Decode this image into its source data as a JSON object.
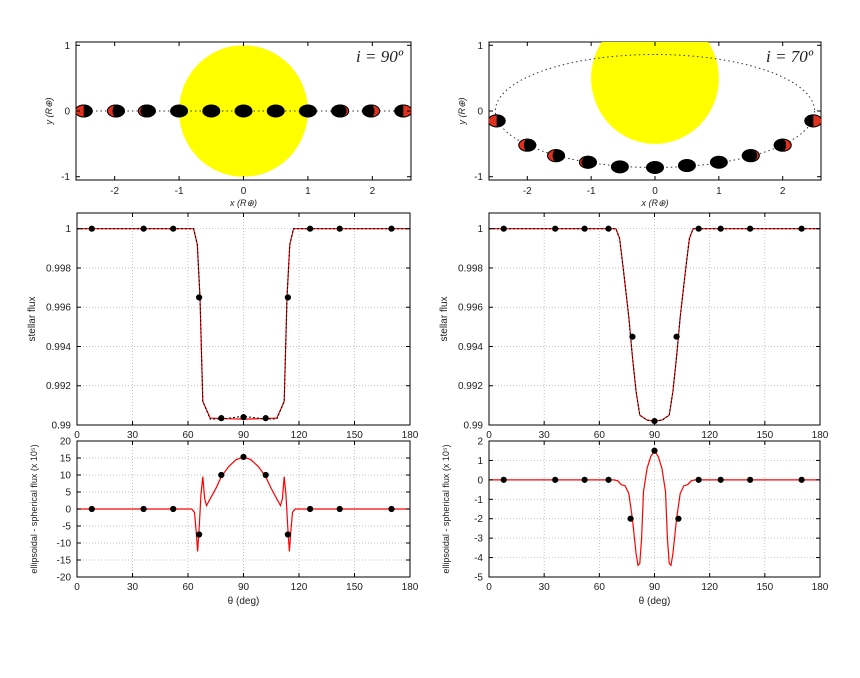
{
  "colors": {
    "star": "#ffff00",
    "planet_day": "#e0301e",
    "planet_night": "#000000",
    "model_ellipsoidal": "#ff0000",
    "model_spherical": "#000000",
    "grid": "#aaaaaa"
  },
  "chart_data": [
    {
      "type": "scatter",
      "panel": "orbit-i90",
      "annotation": "i = 90º",
      "xlabel": "x (R⊕)",
      "ylabel": "y (R⊕)",
      "xlim": [
        -2.6,
        2.6
      ],
      "ylim": [
        -1.05,
        1.05
      ],
      "xticks": [
        "-2",
        "-1",
        "0",
        "1",
        "2"
      ],
      "yticks": [
        "-1",
        "0",
        "1"
      ],
      "grid": false,
      "star": {
        "x": 0,
        "y": 0,
        "radius": 1
      },
      "orbit": {
        "semi_major": 2.5,
        "semi_minor": 0
      },
      "planets": [
        {
          "x": -2.48,
          "y": 0,
          "phase": "half"
        },
        {
          "x": -1.98,
          "y": 0,
          "phase": "gibbous"
        },
        {
          "x": -1.5,
          "y": 0,
          "phase": "crescent"
        },
        {
          "x": -1.0,
          "y": 0,
          "phase": "new"
        },
        {
          "x": -0.5,
          "y": 0,
          "phase": "new"
        },
        {
          "x": 0,
          "y": 0,
          "phase": "new"
        },
        {
          "x": 0.5,
          "y": 0,
          "phase": "new"
        },
        {
          "x": 1.0,
          "y": 0,
          "phase": "new"
        },
        {
          "x": 1.5,
          "y": 0,
          "phase": "crescent"
        },
        {
          "x": 1.98,
          "y": 0,
          "phase": "gibbous"
        },
        {
          "x": 2.48,
          "y": 0,
          "phase": "half"
        }
      ]
    },
    {
      "type": "scatter",
      "panel": "orbit-i70",
      "annotation": "i = 70º",
      "xlabel": "x (R⊕)",
      "ylabel": "y (R⊕)",
      "xlim": [
        -2.6,
        2.6
      ],
      "ylim": [
        -1.05,
        1.05
      ],
      "xticks": [
        "-2",
        "-1",
        "0",
        "1",
        "2"
      ],
      "yticks": [
        "-1",
        "0",
        "1"
      ],
      "grid": false,
      "star": {
        "x": 0,
        "y": 0.5,
        "radius": 1
      },
      "orbit": {
        "semi_major": 2.5,
        "semi_minor": 0.86,
        "center_y": 0
      },
      "planets": [
        {
          "x": -2.48,
          "y": -0.15,
          "phase": "half"
        },
        {
          "x": -2.0,
          "y": -0.52,
          "phase": "gibbous"
        },
        {
          "x": -1.55,
          "y": -0.68,
          "phase": "gibbous"
        },
        {
          "x": -1.05,
          "y": -0.78,
          "phase": "crescent"
        },
        {
          "x": -0.55,
          "y": -0.85,
          "phase": "new"
        },
        {
          "x": 0,
          "y": -0.86,
          "phase": "new"
        },
        {
          "x": 0.5,
          "y": -0.83,
          "phase": "new"
        },
        {
          "x": 1.0,
          "y": -0.78,
          "phase": "new"
        },
        {
          "x": 1.5,
          "y": -0.68,
          "phase": "crescent"
        },
        {
          "x": 2.0,
          "y": -0.52,
          "phase": "gibbous"
        },
        {
          "x": 2.48,
          "y": -0.15,
          "phase": "half"
        }
      ]
    },
    {
      "type": "line",
      "panel": "flux-i90",
      "ylabel": "stellar flux",
      "xlim": [
        0,
        180
      ],
      "ylim": [
        0.99,
        1.0008
      ],
      "xticks": [
        0,
        30,
        60,
        90,
        120,
        150,
        180
      ],
      "yticks": [
        0.99,
        0.992,
        0.994,
        0.996,
        0.998,
        1
      ],
      "ytick_labels": [
        "0.99",
        "0.992",
        "0.994",
        "0.996",
        "0.998",
        "1"
      ],
      "grid": true,
      "series": [
        {
          "style": "red-solid",
          "x": [
            0,
            63,
            65,
            66.5,
            68,
            72,
            80,
            90,
            100,
            108,
            112,
            113.5,
            115,
            117,
            180
          ],
          "y": [
            1,
            1,
            0.9992,
            0.9965,
            0.9912,
            0.99035,
            0.99032,
            0.9903,
            0.99032,
            0.99035,
            0.9912,
            0.9965,
            0.9992,
            1,
            1
          ]
        },
        {
          "style": "black-dotted",
          "x": [
            0,
            63,
            65,
            66.5,
            68,
            72,
            80,
            90,
            100,
            108,
            112,
            113.5,
            115,
            117,
            180
          ],
          "y": [
            1,
            1,
            0.9992,
            0.9965,
            0.9912,
            0.9903,
            0.99032,
            0.99045,
            0.99032,
            0.9903,
            0.9912,
            0.9965,
            0.9992,
            1,
            1
          ]
        },
        {
          "style": "points",
          "x": [
            8,
            36,
            52,
            66,
            78,
            90,
            102,
            114,
            126,
            142,
            170
          ],
          "y": [
            1,
            1,
            1,
            0.9965,
            0.99035,
            0.9904,
            0.99035,
            0.9965,
            1,
            1,
            1
          ]
        }
      ]
    },
    {
      "type": "line",
      "panel": "flux-i70",
      "ylabel": "stellar flux",
      "xlim": [
        0,
        180
      ],
      "ylim": [
        0.99,
        1.0008
      ],
      "xticks": [
        0,
        30,
        60,
        90,
        120,
        150,
        180
      ],
      "yticks": [
        0.99,
        0.992,
        0.994,
        0.996,
        0.998,
        1
      ],
      "ytick_labels": [
        "0.99",
        "0.992",
        "0.994",
        "0.996",
        "0.998",
        "1"
      ],
      "grid": true,
      "series": [
        {
          "style": "red-solid",
          "x": [
            0,
            69,
            71,
            73,
            76,
            78,
            80,
            82,
            86,
            90,
            94,
            98,
            100,
            102,
            104,
            107,
            109,
            111,
            180
          ],
          "y": [
            1,
            1,
            0.9995,
            0.998,
            0.9955,
            0.9935,
            0.9917,
            0.9905,
            0.99025,
            0.9902,
            0.99025,
            0.9905,
            0.9917,
            0.9935,
            0.9955,
            0.998,
            0.9995,
            1,
            1
          ]
        },
        {
          "style": "black-dotted",
          "x": [
            0,
            69,
            71,
            73,
            76,
            78,
            80,
            82,
            86,
            90,
            94,
            98,
            100,
            102,
            104,
            107,
            109,
            111,
            180
          ],
          "y": [
            1,
            1,
            0.9995,
            0.998,
            0.9955,
            0.9935,
            0.9917,
            0.9905,
            0.99025,
            0.9902,
            0.99025,
            0.9905,
            0.9917,
            0.9935,
            0.9955,
            0.998,
            0.9995,
            1,
            1
          ]
        },
        {
          "style": "points",
          "x": [
            8,
            36,
            52,
            65,
            78,
            90,
            102,
            114,
            126,
            142,
            170
          ],
          "y": [
            1,
            1,
            1,
            1,
            0.9945,
            0.9902,
            0.9945,
            1,
            1,
            1,
            1
          ]
        }
      ]
    },
    {
      "type": "line",
      "panel": "residual-i90",
      "ylabel": "ellipsoidal - spherical flux (x 10⁵)",
      "xlabel": "θ (deg)",
      "xlim": [
        0,
        180
      ],
      "ylim": [
        -20,
        20
      ],
      "xticks": [
        0,
        30,
        60,
        90,
        120,
        150,
        180
      ],
      "yticks": [
        -20,
        -15,
        -10,
        -5,
        0,
        5,
        10,
        15,
        20
      ],
      "ytick_labels": [
        "-20",
        "-15",
        "-10",
        "-5",
        "0",
        "5",
        "10",
        "15",
        "20"
      ],
      "grid": true,
      "series": [
        {
          "style": "red-solid",
          "x": [
            0,
            62,
            63.5,
            64.5,
            65.2,
            66,
            67,
            68,
            69,
            70,
            72,
            75,
            78,
            82,
            86,
            90,
            94,
            98,
            102,
            105,
            108,
            110,
            111,
            112,
            113,
            114,
            114.8,
            115.5,
            116.5,
            118,
            180
          ],
          "y": [
            0,
            0,
            -1,
            -7,
            -12.5,
            -6,
            4,
            9.5,
            3,
            1,
            3,
            6,
            9.5,
            12.5,
            14.5,
            15.3,
            14.5,
            12.5,
            9.5,
            6,
            3,
            1,
            3,
            9.5,
            4,
            -6,
            -12.5,
            -7,
            -1,
            0,
            0
          ]
        },
        {
          "style": "points",
          "x": [
            8,
            36,
            52,
            66,
            78,
            90,
            102,
            114,
            126,
            142,
            170
          ],
          "y": [
            0,
            0,
            0,
            -7.5,
            10,
            15.3,
            10,
            -7.5,
            0,
            0,
            0
          ]
        }
      ]
    },
    {
      "type": "line",
      "panel": "residual-i70",
      "ylabel": "ellipsoidal - spherical flux (x 10⁵)",
      "xlabel": "θ (deg)",
      "xlim": [
        0,
        180
      ],
      "ylim": [
        -5,
        2
      ],
      "xticks": [
        0,
        30,
        60,
        90,
        120,
        150,
        180
      ],
      "yticks": [
        -5,
        -4,
        -3,
        -2,
        -1,
        0,
        1,
        2
      ],
      "ytick_labels": [
        "-5",
        "-4",
        "-3",
        "-2",
        "-1",
        "0",
        "1",
        "2"
      ],
      "grid": true,
      "series": [
        {
          "style": "red-solid",
          "x": [
            0,
            68,
            70,
            72,
            74,
            76,
            78,
            80,
            81,
            82,
            83,
            84,
            86,
            88,
            90,
            92,
            94,
            96,
            97,
            98,
            99,
            100,
            102,
            104,
            106,
            108,
            110,
            112,
            180
          ],
          "y": [
            0,
            0,
            -0.05,
            -0.25,
            -0.3,
            -0.7,
            -2,
            -3.8,
            -4.4,
            -4.3,
            -3,
            -0.6,
            0.6,
            1.2,
            1.5,
            1.2,
            0.6,
            -0.6,
            -3,
            -4.3,
            -4.4,
            -3.8,
            -2,
            -0.7,
            -0.3,
            -0.25,
            -0.05,
            0,
            0
          ]
        },
        {
          "style": "points",
          "x": [
            8,
            36,
            52,
            65,
            77,
            90,
            103,
            114,
            126,
            142,
            170
          ],
          "y": [
            0,
            0,
            0,
            0,
            -2,
            1.5,
            -2,
            0,
            0,
            0,
            0
          ]
        }
      ]
    }
  ]
}
